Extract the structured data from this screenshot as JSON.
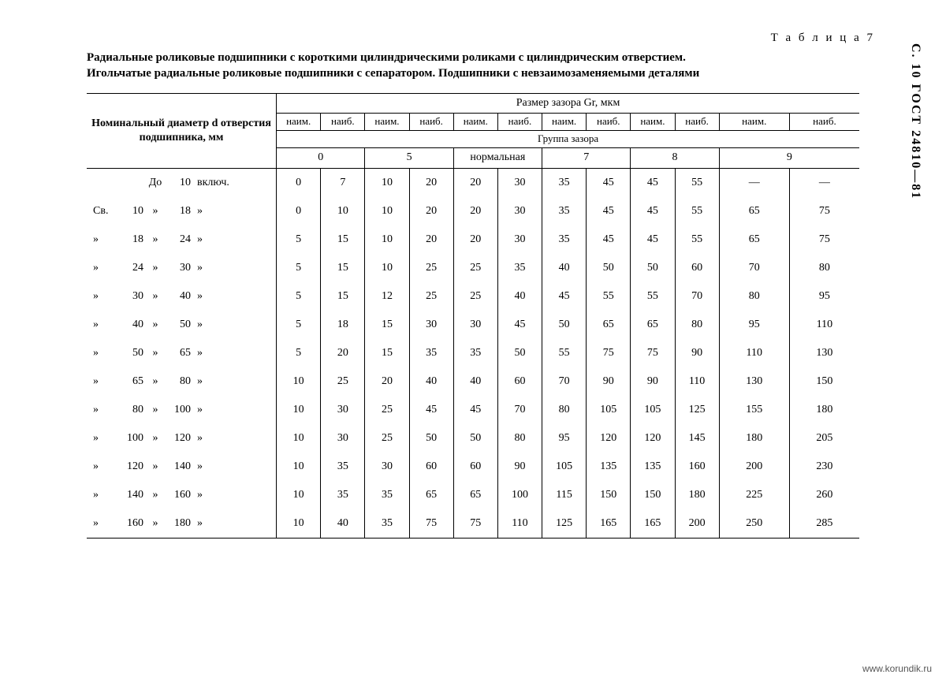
{
  "side_label": "С. 10  ГОСТ 24810—81",
  "table_number": "Т а б л и ц а 7",
  "title_line1": "Радиальные роликовые подшипники с короткими цилиндрическими роликами с цилиндрическим отверстием.",
  "title_line2": "Игольчатые радиальные роликовые подшипники с сепаратором. Подшипники с невзаимозаменяемыми деталями",
  "head": {
    "diameter": "Номинальный диаметр d отверстия подшипника, мм",
    "clearance_top": "Размер зазора Gr, мкм",
    "naim": "наим.",
    "naib": "наиб.",
    "group": "Группа зазора",
    "g0": "0",
    "g5": "5",
    "gN": "нормальная",
    "g7": "7",
    "g8": "8",
    "g9": "9"
  },
  "diam_labels": {
    "do": "До",
    "sv": "Св.",
    "mark": "»",
    "vk": "включ."
  },
  "rows": [
    {
      "c1": "",
      "d1": "",
      "m1": "До",
      "d2": "10",
      "m2": "включ.",
      "v": [
        "0",
        "7",
        "10",
        "20",
        "20",
        "30",
        "35",
        "45",
        "45",
        "55",
        "—",
        "—"
      ]
    },
    {
      "c1": "Св.",
      "d1": "10",
      "m1": "»",
      "d2": "18",
      "m2": "»",
      "v": [
        "0",
        "10",
        "10",
        "20",
        "20",
        "30",
        "35",
        "45",
        "45",
        "55",
        "65",
        "75"
      ]
    },
    {
      "c1": "»",
      "d1": "18",
      "m1": "»",
      "d2": "24",
      "m2": "»",
      "v": [
        "5",
        "15",
        "10",
        "20",
        "20",
        "30",
        "35",
        "45",
        "45",
        "55",
        "65",
        "75"
      ]
    },
    {
      "c1": "»",
      "d1": "24",
      "m1": "»",
      "d2": "30",
      "m2": "»",
      "v": [
        "5",
        "15",
        "10",
        "25",
        "25",
        "35",
        "40",
        "50",
        "50",
        "60",
        "70",
        "80"
      ]
    },
    {
      "c1": "»",
      "d1": "30",
      "m1": "»",
      "d2": "40",
      "m2": "»",
      "v": [
        "5",
        "15",
        "12",
        "25",
        "25",
        "40",
        "45",
        "55",
        "55",
        "70",
        "80",
        "95"
      ]
    },
    {
      "c1": "»",
      "d1": "40",
      "m1": "»",
      "d2": "50",
      "m2": "»",
      "v": [
        "5",
        "18",
        "15",
        "30",
        "30",
        "45",
        "50",
        "65",
        "65",
        "80",
        "95",
        "110"
      ]
    },
    {
      "c1": "»",
      "d1": "50",
      "m1": "»",
      "d2": "65",
      "m2": "»",
      "v": [
        "5",
        "20",
        "15",
        "35",
        "35",
        "50",
        "55",
        "75",
        "75",
        "90",
        "110",
        "130"
      ]
    },
    {
      "c1": "»",
      "d1": "65",
      "m1": "»",
      "d2": "80",
      "m2": "»",
      "v": [
        "10",
        "25",
        "20",
        "40",
        "40",
        "60",
        "70",
        "90",
        "90",
        "110",
        "130",
        "150"
      ]
    },
    {
      "c1": "»",
      "d1": "80",
      "m1": "»",
      "d2": "100",
      "m2": "»",
      "v": [
        "10",
        "30",
        "25",
        "45",
        "45",
        "70",
        "80",
        "105",
        "105",
        "125",
        "155",
        "180"
      ]
    },
    {
      "c1": "»",
      "d1": "100",
      "m1": "»",
      "d2": "120",
      "m2": "»",
      "v": [
        "10",
        "30",
        "25",
        "50",
        "50",
        "80",
        "95",
        "120",
        "120",
        "145",
        "180",
        "205"
      ]
    },
    {
      "c1": "»",
      "d1": "120",
      "m1": "»",
      "d2": "140",
      "m2": "»",
      "v": [
        "10",
        "35",
        "30",
        "60",
        "60",
        "90",
        "105",
        "135",
        "135",
        "160",
        "200",
        "230"
      ]
    },
    {
      "c1": "»",
      "d1": "140",
      "m1": "»",
      "d2": "160",
      "m2": "»",
      "v": [
        "10",
        "35",
        "35",
        "65",
        "65",
        "100",
        "115",
        "150",
        "150",
        "180",
        "225",
        "260"
      ]
    },
    {
      "c1": "»",
      "d1": "160",
      "m1": "»",
      "d2": "180",
      "m2": "»",
      "v": [
        "10",
        "40",
        "35",
        "75",
        "75",
        "110",
        "125",
        "165",
        "165",
        "200",
        "250",
        "285"
      ]
    }
  ],
  "watermark": "www.korundik.ru"
}
